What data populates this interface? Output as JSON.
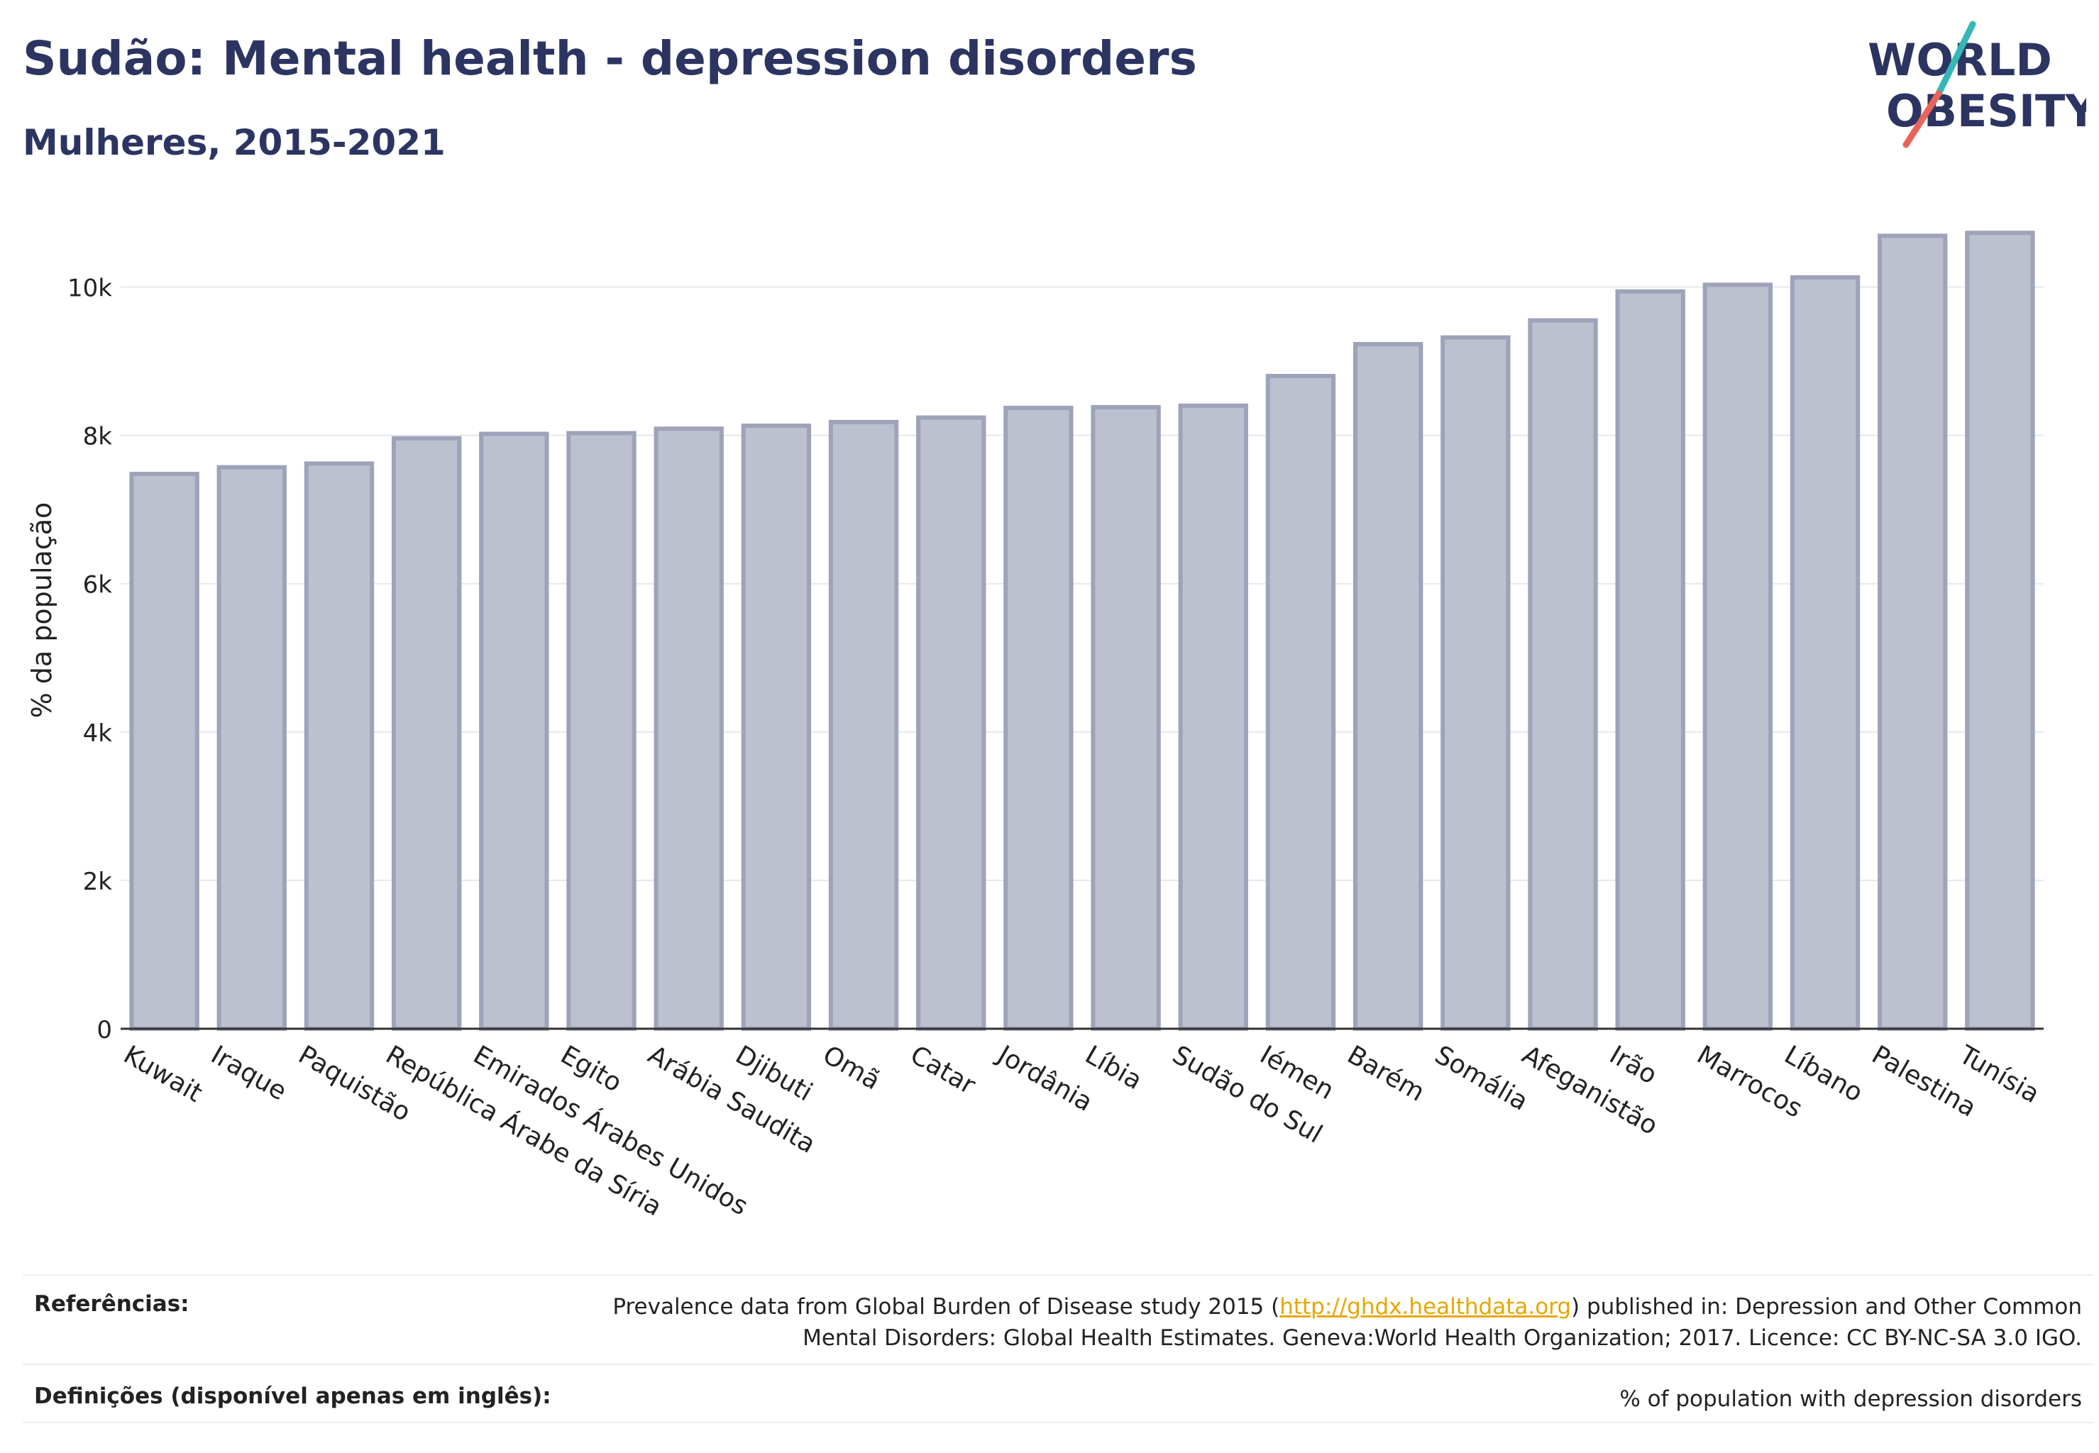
{
  "title": "Sudão: Mental health - depression disorders",
  "subtitle": "Mulheres, 2015-2021",
  "logo": {
    "line1": "WORLD",
    "line2": "OBESITY"
  },
  "colors": {
    "title": "#2c3561",
    "bar_fill": "#bcc0cf",
    "bar_stroke": "#9ea3ba",
    "grid": "#e6e8ee",
    "link": "#e6a700",
    "logo_text": "#2c3561",
    "logo_slash_teal": "#35b7b5",
    "logo_slash_red": "#e9645b"
  },
  "chart_data": {
    "type": "bar",
    "title": "Sudão: Mental health - depression disorders",
    "subtitle": "Mulheres, 2015-2021",
    "xlabel": "",
    "ylabel": "% da população",
    "ylim": [
      0,
      11000
    ],
    "yticks": [
      0,
      2000,
      4000,
      6000,
      8000,
      10000
    ],
    "ytick_labels": [
      "0",
      "2k",
      "4k",
      "6k",
      "8k",
      "10k"
    ],
    "grid": true,
    "categories": [
      "Kuwait",
      "Iraque",
      "Paquistão",
      "República Árabe da Síria",
      "Emirados Árabes Unidos",
      "Egito",
      "Arábia Saudita",
      "Djibuti",
      "Omã",
      "Catar",
      "Jordânia",
      "Líbia",
      "Sudão do Sul",
      "Iémen",
      "Barém",
      "Somália",
      "Afeganistão",
      "Irão",
      "Marrocos",
      "Líbano",
      "Palestina",
      "Tunísia"
    ],
    "values": [
      7480,
      7570,
      7620,
      7960,
      8020,
      8030,
      8090,
      8130,
      8180,
      8240,
      8370,
      8380,
      8400,
      8800,
      9230,
      9320,
      9550,
      9940,
      10030,
      10130,
      10690,
      10730
    ]
  },
  "footer": {
    "references_label": "Referências:",
    "references_text_1": "Prevalence data from Global Burden of Disease study 2015 (",
    "references_link": "http://ghdx.healthdata.org",
    "references_text_2": ") published in: Depression and Other Common",
    "references_text_3": "Mental Disorders: Global Health Estimates. Geneva:World Health Organization; 2017. Licence: CC BY-NC-SA 3.0 IGO.",
    "definitions_label": "Definições (disponível apenas em inglês):",
    "definitions_text": "% of population with depression disorders"
  }
}
